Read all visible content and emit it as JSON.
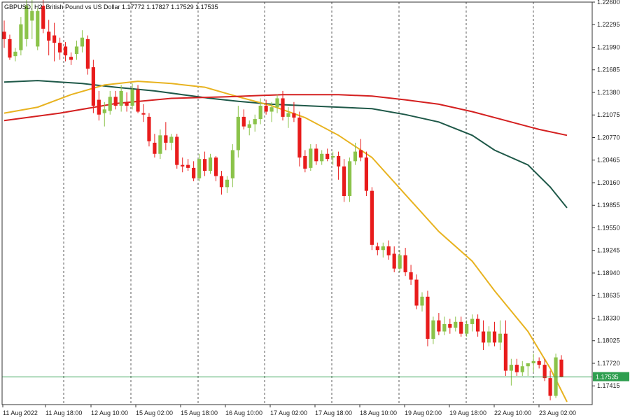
{
  "header": {
    "text": "GBPUSD, H2:  British Pound vs US Dollar  1.17772 1.17827 1.17529 1.17535"
  },
  "chart_data": {
    "type": "candlestick",
    "symbol": "GBPUSD",
    "timeframe": "H2",
    "description": "British Pound vs US Dollar",
    "last_ohlc": {
      "open": 1.17772,
      "high": 1.17827,
      "low": 1.17529,
      "close": 1.17535
    },
    "current_price": 1.17535,
    "ylim": [
      1.17162,
      1.226
    ],
    "y_ticks": [
      "1.22600",
      "1.22295",
      "1.21990",
      "1.21685",
      "1.21380",
      "1.21075",
      "1.20770",
      "1.20465",
      "1.20160",
      "1.19855",
      "1.19550",
      "1.19245",
      "1.18940",
      "1.18635",
      "1.18330",
      "1.18025",
      "1.17720",
      "1.17415"
    ],
    "x_ticks": [
      "11 Aug 2022",
      "11 Aug 18:00",
      "12 Aug 10:00",
      "15 Aug 02:00",
      "15 Aug 18:00",
      "16 Aug 10:00",
      "17 Aug 02:00",
      "17 Aug 18:00",
      "18 Aug 10:00",
      "19 Aug 02:00",
      "19 Aug 18:00",
      "22 Aug 10:00",
      "23 Aug 02:00"
    ],
    "grid": "vertical-dashed",
    "candle_colors": {
      "up": "#8bc34a",
      "down": "#e81b1b"
    },
    "candles": [
      [
        1.222,
        1.2235,
        1.2198,
        1.221
      ],
      [
        1.221,
        1.2216,
        1.2182,
        1.2185
      ],
      [
        1.2187,
        1.2198,
        1.218,
        1.2193
      ],
      [
        1.2195,
        1.224,
        1.2188,
        1.223
      ],
      [
        1.221,
        1.2265,
        1.22,
        1.2255
      ],
      [
        1.2235,
        1.2268,
        1.221,
        1.2248
      ],
      [
        1.22,
        1.2252,
        1.2195,
        1.2248
      ],
      [
        1.2255,
        1.227,
        1.2218,
        1.2224
      ],
      [
        1.222,
        1.2236,
        1.2188,
        1.2208
      ],
      [
        1.2215,
        1.2232,
        1.218,
        1.2205
      ],
      [
        1.2205,
        1.2212,
        1.2182,
        1.2192
      ],
      [
        1.22,
        1.2206,
        1.218,
        1.2188
      ],
      [
        1.2186,
        1.2192,
        1.2175,
        1.2182
      ],
      [
        1.219,
        1.2208,
        1.2182,
        1.22
      ],
      [
        1.22,
        1.2222,
        1.2192,
        1.2212
      ],
      [
        1.221,
        1.2215,
        1.2162,
        1.217
      ],
      [
        1.2172,
        1.2182,
        1.211,
        1.212
      ],
      [
        1.2128,
        1.214,
        1.21,
        1.2108
      ],
      [
        1.211,
        1.2125,
        1.2092,
        1.2115
      ],
      [
        1.2113,
        1.214,
        1.2108,
        1.2132
      ],
      [
        1.2132,
        1.214,
        1.2115,
        1.212
      ],
      [
        1.212,
        1.2148,
        1.2112,
        1.214
      ],
      [
        1.2125,
        1.2138,
        1.2112,
        1.212
      ],
      [
        1.212,
        1.215,
        1.2115,
        1.2142
      ],
      [
        1.2142,
        1.2148,
        1.211,
        1.2112
      ],
      [
        1.211,
        1.2122,
        1.2098,
        1.2108
      ],
      [
        1.2105,
        1.211,
        1.2065,
        1.2072
      ],
      [
        1.207,
        1.2082,
        1.205,
        1.2055
      ],
      [
        1.2055,
        1.2088,
        1.2048,
        1.208
      ],
      [
        1.208,
        1.2098,
        1.206,
        1.207
      ],
      [
        1.207,
        1.2082,
        1.206,
        1.2078
      ],
      [
        1.2078,
        1.2082,
        1.2035,
        1.204
      ],
      [
        1.204,
        1.205,
        1.203,
        1.2038
      ],
      [
        1.204,
        1.2048,
        1.2032,
        1.2036
      ],
      [
        1.2036,
        1.2045,
        1.2018,
        1.2022
      ],
      [
        1.2022,
        1.2055,
        1.2018,
        1.2048
      ],
      [
        1.2048,
        1.2058,
        1.2025,
        1.2032
      ],
      [
        1.2032,
        1.2055,
        1.2028,
        1.205
      ],
      [
        1.205,
        1.2052,
        1.2018,
        1.2025
      ],
      [
        1.2025,
        1.2032,
        1.2,
        1.201
      ],
      [
        1.201,
        1.2025,
        1.2002,
        1.202
      ],
      [
        1.2022,
        1.2068,
        1.201,
        1.206
      ],
      [
        1.206,
        1.212,
        1.205,
        1.2105
      ],
      [
        1.2105,
        1.2115,
        1.2088,
        1.2092
      ],
      [
        1.209,
        1.21,
        1.208,
        1.2095
      ],
      [
        1.2095,
        1.2108,
        1.2085,
        1.2102
      ],
      [
        1.2102,
        1.213,
        1.2095,
        1.212
      ],
      [
        1.212,
        1.2128,
        1.2108,
        1.2112
      ],
      [
        1.2112,
        1.2125,
        1.2098,
        1.2118
      ],
      [
        1.2118,
        1.2135,
        1.211,
        1.213
      ],
      [
        1.213,
        1.214,
        1.21,
        1.2105
      ],
      [
        1.2105,
        1.2118,
        1.209,
        1.211
      ],
      [
        1.211,
        1.2125,
        1.2098,
        1.2104
      ],
      [
        1.2104,
        1.2112,
        1.2038,
        1.205
      ],
      [
        1.2052,
        1.206,
        1.203,
        1.2035
      ],
      [
        1.2036,
        1.2068,
        1.2032,
        1.2062
      ],
      [
        1.2062,
        1.2068,
        1.204,
        1.2045
      ],
      [
        1.2045,
        1.206,
        1.204,
        1.2055
      ],
      [
        1.2055,
        1.2062,
        1.2045,
        1.2048
      ],
      [
        1.205,
        1.2058,
        1.204,
        1.2052
      ],
      [
        1.2052,
        1.2058,
        1.202,
        1.2038
      ],
      [
        1.2038,
        1.2048,
        1.199,
        1.1998
      ],
      [
        1.1998,
        1.205,
        1.199,
        1.2045
      ],
      [
        1.2045,
        1.207,
        1.204,
        1.2058
      ],
      [
        1.206,
        1.2075,
        1.2045,
        1.205
      ],
      [
        1.205,
        1.2058,
        1.1998,
        1.2005
      ],
      [
        1.2005,
        1.201,
        1.1925,
        1.1932
      ],
      [
        1.193,
        1.1935,
        1.1918,
        1.1925
      ],
      [
        1.1925,
        1.1935,
        1.1915,
        1.193
      ],
      [
        1.193,
        1.1938,
        1.1912,
        1.1918
      ],
      [
        1.192,
        1.193,
        1.1895,
        1.19
      ],
      [
        1.19,
        1.1925,
        1.1895,
        1.1918
      ],
      [
        1.1918,
        1.1928,
        1.189,
        1.1895
      ],
      [
        1.1895,
        1.1905,
        1.1878,
        1.1885
      ],
      [
        1.1885,
        1.1892,
        1.1845,
        1.185
      ],
      [
        1.185,
        1.1868,
        1.1842,
        1.1862
      ],
      [
        1.1862,
        1.187,
        1.1795,
        1.1805
      ],
      [
        1.1805,
        1.1835,
        1.1798,
        1.183
      ],
      [
        1.183,
        1.184,
        1.181,
        1.1815
      ],
      [
        1.1815,
        1.1835,
        1.181,
        1.1825
      ],
      [
        1.1825,
        1.1832,
        1.1812,
        1.182
      ],
      [
        1.182,
        1.1835,
        1.1815,
        1.1828
      ],
      [
        1.1828,
        1.1835,
        1.1808,
        1.1812
      ],
      [
        1.1812,
        1.183,
        1.1808,
        1.1825
      ],
      [
        1.1825,
        1.1838,
        1.1815,
        1.1832
      ],
      [
        1.1832,
        1.1838,
        1.1808,
        1.1815
      ],
      [
        1.1815,
        1.183,
        1.179,
        1.18
      ],
      [
        1.18,
        1.1822,
        1.1795,
        1.1815
      ],
      [
        1.1815,
        1.1828,
        1.1795,
        1.18
      ],
      [
        1.18,
        1.183,
        1.179,
        1.1812
      ],
      [
        1.1812,
        1.183,
        1.1755,
        1.1762
      ],
      [
        1.1762,
        1.1778,
        1.1742,
        1.177
      ],
      [
        1.177,
        1.1778,
        1.1755,
        1.176
      ],
      [
        1.176,
        1.1775,
        1.1755,
        1.1768
      ],
      [
        1.1768,
        1.1772,
        1.1755,
        1.1772
      ],
      [
        1.1772,
        1.1785,
        1.176,
        1.1775
      ],
      [
        1.1775,
        1.178,
        1.1765,
        1.177
      ],
      [
        1.177,
        1.1778,
        1.1748,
        1.1752
      ],
      [
        1.1752,
        1.1762,
        1.1722,
        1.1728
      ],
      [
        1.1728,
        1.1785,
        1.1725,
        1.178
      ],
      [
        1.1777,
        1.1783,
        1.1753,
        1.1754
      ]
    ],
    "moving_averages": [
      {
        "color": "#1e5848",
        "points": [
          [
            0,
            1.2152
          ],
          [
            6,
            1.2154
          ],
          [
            10,
            1.2152
          ],
          [
            14,
            1.215
          ],
          [
            20,
            1.2145
          ],
          [
            27,
            1.214
          ],
          [
            32,
            1.2135
          ],
          [
            37,
            1.213
          ],
          [
            42,
            1.2126
          ],
          [
            48,
            1.2122
          ],
          [
            54,
            1.212
          ],
          [
            60,
            1.2118
          ],
          [
            66,
            1.2116
          ],
          [
            72,
            1.2108
          ],
          [
            78,
            1.2098
          ],
          [
            84,
            1.208
          ],
          [
            88,
            1.206
          ],
          [
            94,
            1.204
          ],
          [
            98,
            1.201
          ],
          [
            101,
            1.1982
          ]
        ]
      },
      {
        "color": "#e8b320",
        "points": [
          [
            0,
            1.211
          ],
          [
            6,
            1.2118
          ],
          [
            12,
            1.2135
          ],
          [
            18,
            1.2148
          ],
          [
            24,
            1.2153
          ],
          [
            30,
            1.215
          ],
          [
            36,
            1.2145
          ],
          [
            42,
            1.2132
          ],
          [
            48,
            1.212
          ],
          [
            54,
            1.2104
          ],
          [
            60,
            1.208
          ],
          [
            66,
            1.205
          ],
          [
            72,
            1.2
          ],
          [
            78,
            1.195
          ],
          [
            84,
            1.191
          ],
          [
            88,
            1.187
          ],
          [
            94,
            1.1815
          ],
          [
            98,
            1.1765
          ],
          [
            101,
            1.172
          ]
        ]
      },
      {
        "color": "#d42020",
        "points": [
          [
            0,
            1.21
          ],
          [
            10,
            1.211
          ],
          [
            20,
            1.2123
          ],
          [
            30,
            1.213
          ],
          [
            40,
            1.2132
          ],
          [
            50,
            1.2135
          ],
          [
            60,
            1.2135
          ],
          [
            66,
            1.2133
          ],
          [
            72,
            1.2128
          ],
          [
            78,
            1.2122
          ],
          [
            84,
            1.2112
          ],
          [
            90,
            1.21
          ],
          [
            96,
            1.2088
          ],
          [
            101,
            1.208
          ]
        ]
      }
    ]
  }
}
